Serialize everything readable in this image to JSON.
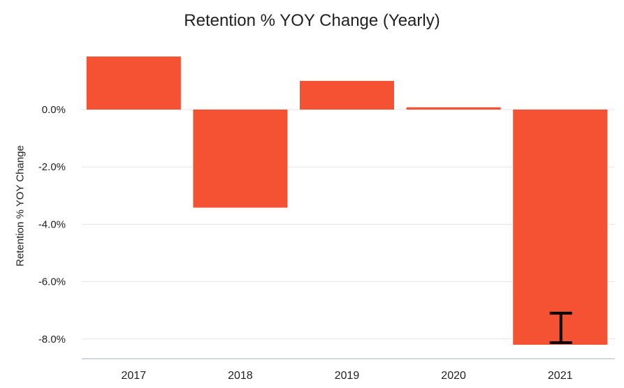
{
  "chart_data": {
    "type": "bar",
    "title": "Retention % YOY Change (Yearly)",
    "xlabel": "",
    "ylabel": "Retention % YOY Change",
    "categories": [
      "2017",
      "2018",
      "2019",
      "2020",
      "2021"
    ],
    "values": [
      1.85,
      -3.42,
      1.0,
      0.08,
      -8.2
    ],
    "ylim": [
      -8.8,
      2.5
    ],
    "yticks": [
      0.0,
      -2.0,
      -4.0,
      -6.0,
      -8.0
    ],
    "ytick_labels": [
      "0.0%",
      "-2.0%",
      "-4.0%",
      "-6.0%",
      "-8.0%"
    ],
    "error_bars": [
      {
        "category": "2021",
        "low": -8.2,
        "high": -7.1
      }
    ],
    "grid": true,
    "legend": "none",
    "colors": {
      "bar": "#f55233",
      "grid": "#e3e3e3",
      "axis": "#bfcad6",
      "error_bar": "#000000"
    }
  }
}
